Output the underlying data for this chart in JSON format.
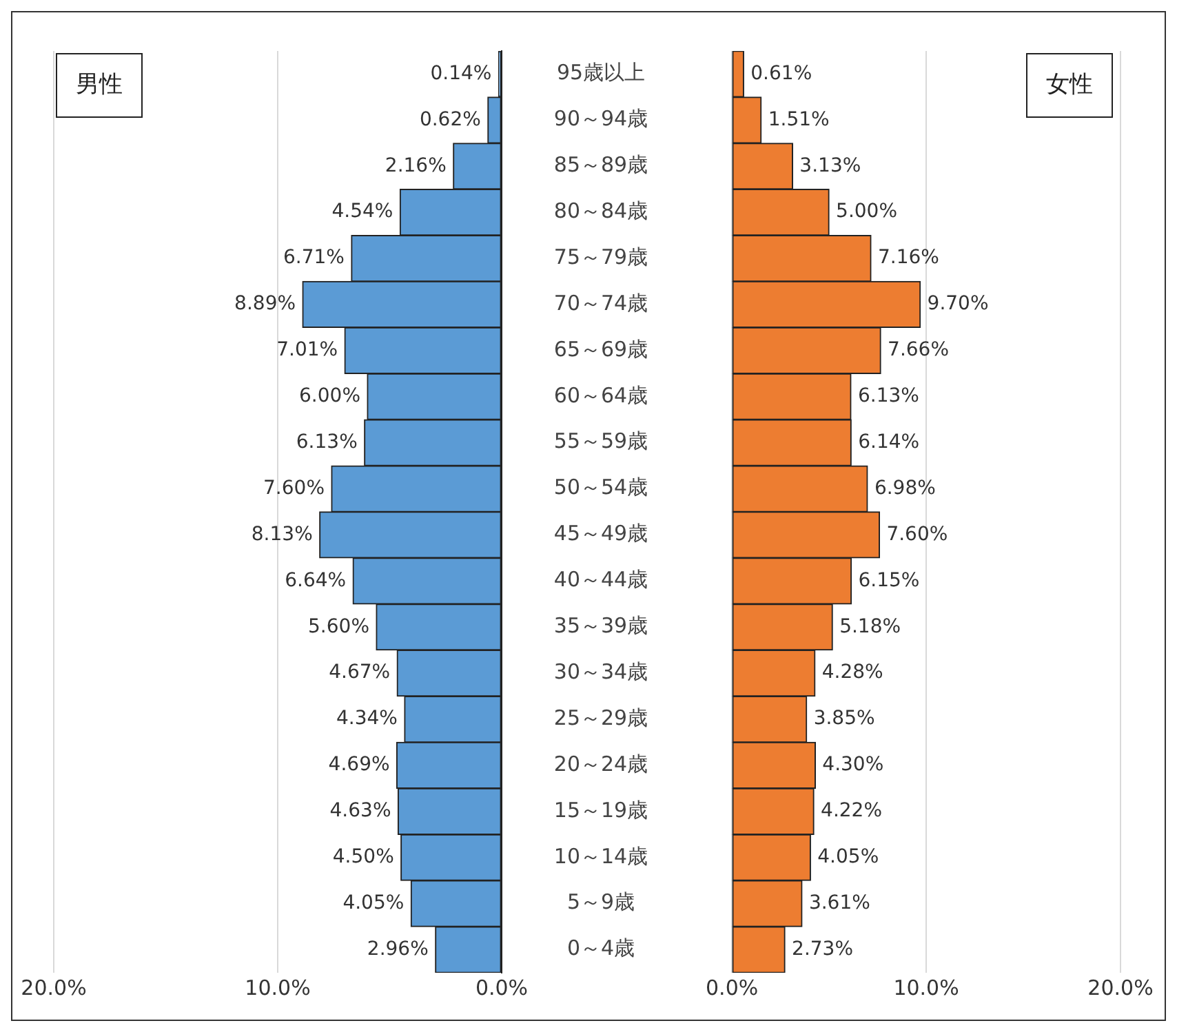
{
  "chart_data": [
    {
      "type": "bar",
      "orientation": "horizontal",
      "title": "男性",
      "categories": [
        "95歳以上",
        "90～94歳",
        "85～89歳",
        "80～84歳",
        "75～79歳",
        "70～74歳",
        "65～69歳",
        "60～64歳",
        "55～59歳",
        "50～54歳",
        "45～49歳",
        "40～44歳",
        "35～39歳",
        "30～34歳",
        "25～29歳",
        "20～24歳",
        "15～19歳",
        "10～14歳",
        "5～9歳",
        "0～4歳"
      ],
      "series": [
        {
          "color": "#5b9bd5",
          "values": [
            0.14,
            0.62,
            2.16,
            4.54,
            6.71,
            8.89,
            7.01,
            6.0,
            6.13,
            7.6,
            8.13,
            6.64,
            5.6,
            4.67,
            4.34,
            4.69,
            4.63,
            4.5,
            4.05,
            2.96
          ],
          "value_labels": [
            "0.14%",
            "0.62%",
            "2.16%",
            "4.54%",
            "6.71%",
            "8.89%",
            "7.01%",
            "6.00%",
            "6.13%",
            "7.60%",
            "8.13%",
            "6.64%",
            "5.60%",
            "4.67%",
            "4.34%",
            "4.69%",
            "4.63%",
            "4.50%",
            "4.05%",
            "2.96%"
          ]
        }
      ],
      "xlim": [
        20,
        0
      ],
      "xticks": [
        {
          "value": 20,
          "label": "20.0%"
        },
        {
          "value": 10,
          "label": "10.0%"
        },
        {
          "value": 0,
          "label": "0.0%"
        }
      ],
      "grid": "x",
      "legend": false
    },
    {
      "type": "bar",
      "orientation": "horizontal",
      "title": "女性",
      "categories": [
        null,
        null,
        null,
        null,
        null,
        null,
        null,
        null,
        null,
        null,
        null,
        null,
        null,
        null,
        null,
        null,
        null,
        null,
        null,
        null
      ],
      "series": [
        {
          "color": "#ed7d31",
          "values": [
            0.61,
            1.51,
            3.13,
            5.0,
            7.16,
            9.7,
            7.66,
            6.13,
            6.14,
            6.98,
            7.6,
            6.15,
            5.18,
            4.28,
            3.85,
            4.3,
            4.22,
            4.05,
            3.61,
            2.73
          ],
          "value_labels": [
            "0.61%",
            "1.51%",
            "3.13%",
            "5.00%",
            "7.16%",
            "9.70%",
            "7.66%",
            "6.13%",
            "6.14%",
            "6.98%",
            "7.60%",
            "6.15%",
            "5.18%",
            "4.28%",
            "3.85%",
            "4.30%",
            "4.22%",
            "4.05%",
            "3.61%",
            "2.73%"
          ]
        }
      ],
      "xlim": [
        0,
        20
      ],
      "xticks": [
        {
          "value": 0,
          "label": "0.0%"
        },
        {
          "value": 10,
          "label": "10.0%"
        },
        {
          "value": 20,
          "label": "20.0%"
        }
      ],
      "grid": "x",
      "legend": false,
      "tick_labels": "x"
    }
  ]
}
